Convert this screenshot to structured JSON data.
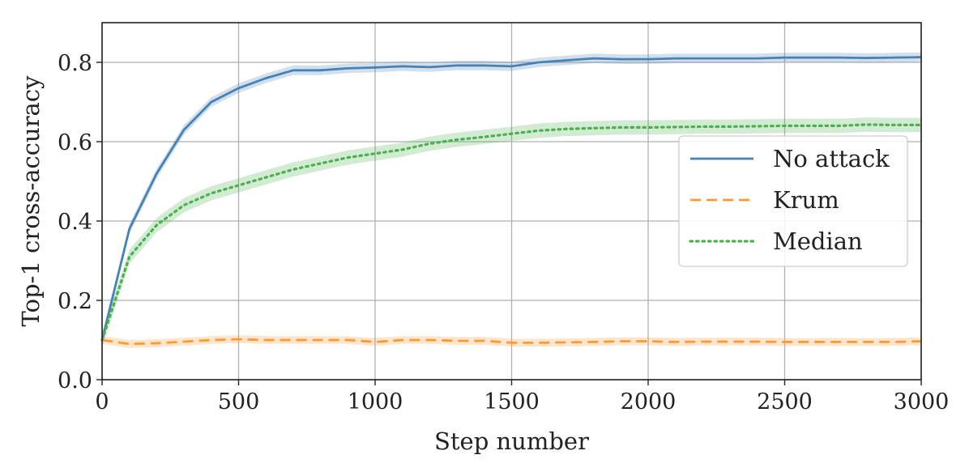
{
  "chart_data": {
    "type": "line",
    "xlabel": "Step number",
    "ylabel": "Top-1 cross-accuracy",
    "xlim": [
      0,
      3000
    ],
    "ylim": [
      0,
      0.9
    ],
    "xticks": [
      0,
      500,
      1000,
      1500,
      2000,
      2500,
      3000
    ],
    "yticks": [
      0.0,
      0.2,
      0.4,
      0.6,
      0.8
    ],
    "xtick_labels": [
      "0",
      "500",
      "1000",
      "1500",
      "2000",
      "2500",
      "3000"
    ],
    "ytick_labels": [
      "0.0",
      "0.2",
      "0.4",
      "0.6",
      "0.8"
    ],
    "grid": true,
    "legend_position": "center-right",
    "x": [
      0,
      100,
      200,
      300,
      400,
      500,
      600,
      700,
      800,
      900,
      1000,
      1100,
      1200,
      1300,
      1400,
      1500,
      1600,
      1700,
      1800,
      1900,
      2000,
      2100,
      2200,
      2300,
      2400,
      2500,
      2600,
      2700,
      2800,
      2900,
      3000
    ],
    "series": [
      {
        "name": "No attack",
        "color": "#4682b4",
        "style": "solid",
        "values": [
          0.1,
          0.38,
          0.52,
          0.63,
          0.7,
          0.735,
          0.76,
          0.78,
          0.78,
          0.785,
          0.787,
          0.79,
          0.788,
          0.792,
          0.792,
          0.79,
          0.8,
          0.805,
          0.81,
          0.808,
          0.808,
          0.81,
          0.81,
          0.81,
          0.81,
          0.812,
          0.812,
          0.812,
          0.811,
          0.812,
          0.813
        ],
        "band": 0.012
      },
      {
        "name": "Krum",
        "color": "#ff9933",
        "style": "dashed",
        "values": [
          0.1,
          0.09,
          0.092,
          0.096,
          0.1,
          0.102,
          0.1,
          0.1,
          0.1,
          0.1,
          0.095,
          0.1,
          0.1,
          0.098,
          0.098,
          0.093,
          0.093,
          0.094,
          0.095,
          0.097,
          0.097,
          0.095,
          0.096,
          0.096,
          0.096,
          0.095,
          0.095,
          0.095,
          0.095,
          0.095,
          0.097
        ],
        "band": 0.01
      },
      {
        "name": "Median",
        "color": "#4caf50",
        "style": "dotted",
        "values": [
          0.1,
          0.31,
          0.39,
          0.44,
          0.47,
          0.49,
          0.51,
          0.53,
          0.545,
          0.56,
          0.57,
          0.58,
          0.595,
          0.605,
          0.612,
          0.62,
          0.628,
          0.632,
          0.634,
          0.636,
          0.636,
          0.637,
          0.638,
          0.638,
          0.639,
          0.64,
          0.64,
          0.64,
          0.643,
          0.642,
          0.642
        ],
        "band": 0.018
      }
    ]
  }
}
